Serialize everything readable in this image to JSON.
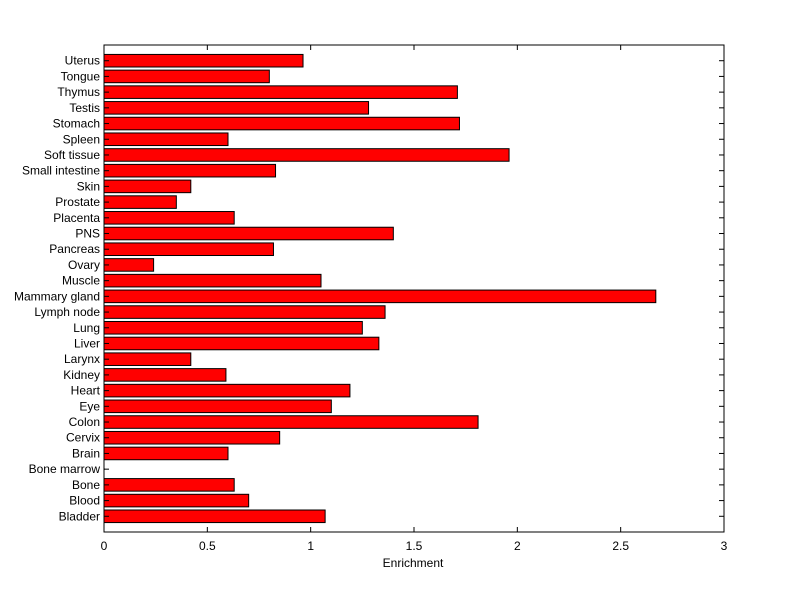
{
  "chart_data": {
    "type": "bar",
    "orientation": "horizontal",
    "title": "",
    "xlabel": "Enrichment",
    "ylabel": "",
    "xlim": [
      0,
      3
    ],
    "xticks": [
      0,
      0.5,
      1,
      1.5,
      2,
      2.5,
      3
    ],
    "xtick_labels": [
      "0",
      "0.5",
      "1",
      "1.5",
      "2",
      "2.5",
      "3"
    ],
    "grid": false,
    "bar_color": "#ff0000",
    "categories": [
      "Bladder",
      "Blood",
      "Bone",
      "Bone marrow",
      "Brain",
      "Cervix",
      "Colon",
      "Eye",
      "Heart",
      "Kidney",
      "Larynx",
      "Liver",
      "Lung",
      "Lymph node",
      "Mammary gland",
      "Muscle",
      "Ovary",
      "Pancreas",
      "PNS",
      "Placenta",
      "Prostate",
      "Skin",
      "Small intestine",
      "Soft tissue",
      "Spleen",
      "Stomach",
      "Testis",
      "Thymus",
      "Tongue",
      "Uterus"
    ],
    "values": [
      1.07,
      0.7,
      0.63,
      0,
      0.6,
      0.85,
      1.81,
      1.1,
      1.19,
      0.59,
      0.42,
      1.33,
      1.25,
      1.36,
      2.67,
      1.05,
      0.24,
      0.82,
      1.4,
      0.63,
      0.35,
      0.42,
      0.83,
      1.96,
      0.6,
      1.72,
      1.28,
      1.71,
      0.8,
      0.963
    ]
  }
}
